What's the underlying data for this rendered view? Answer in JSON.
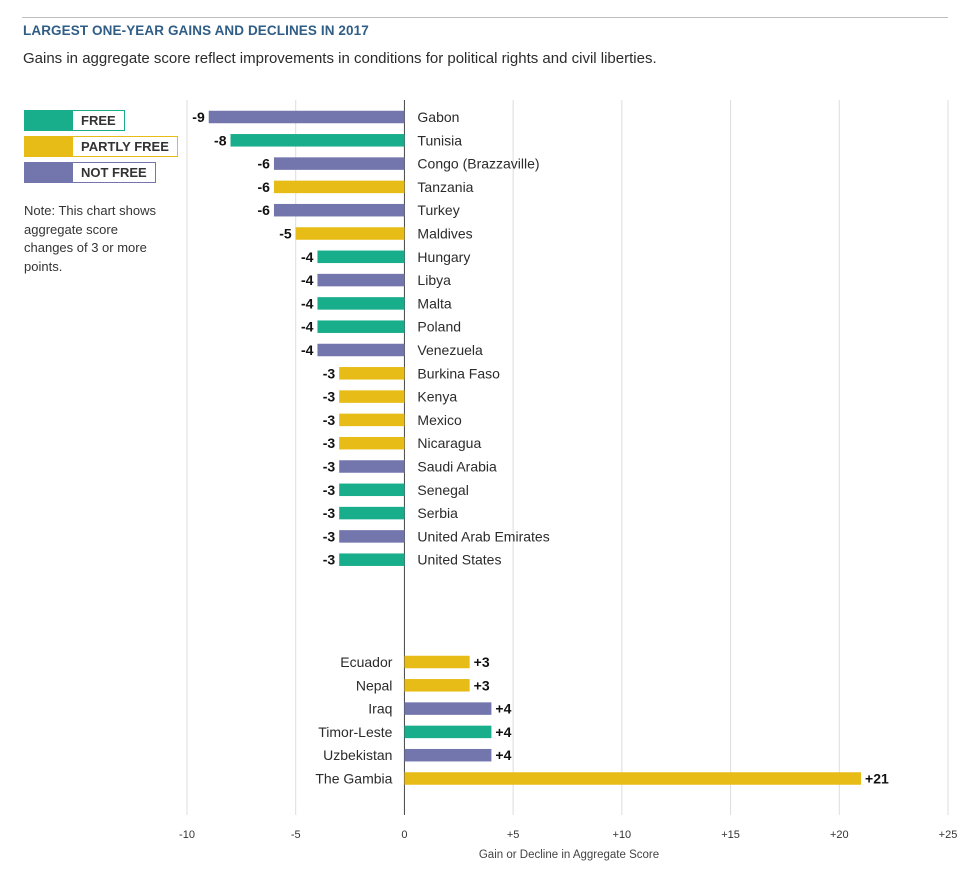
{
  "title": "LARGEST ONE-YEAR GAINS AND DECLINES IN 2017",
  "subtitle": "Gains in aggregate score reflect improvements in conditions for political rights and civil liberties.",
  "colors": {
    "free": "#18ad8b",
    "partly_free": "#e7bc16",
    "not_free": "#7276ad",
    "axis": "#444444",
    "grid": "#dddddd",
    "title": "#2f5d86"
  },
  "legend": [
    {
      "key": "free",
      "label": "FREE",
      "color": "#18ad8b"
    },
    {
      "key": "partly_free",
      "label": "PARTLY FREE",
      "color": "#e7bc16"
    },
    {
      "key": "not_free",
      "label": "NOT FREE",
      "color": "#7276ad"
    }
  ],
  "note": "Note: This chart shows aggregate score changes of 3 or more points.",
  "chart_data": {
    "type": "bar",
    "orientation": "horizontal",
    "title": "LARGEST ONE-YEAR GAINS AND DECLINES IN 2017",
    "xlabel": "Gain or Decline in Aggregate Score",
    "ylabel": "",
    "xlim": [
      -10,
      25
    ],
    "x_ticks": [
      -10,
      -5,
      0,
      5,
      10,
      15,
      20,
      25
    ],
    "x_tick_labels": [
      "-10",
      "-5",
      "0",
      "+5",
      "+10",
      "+15",
      "+20",
      "+25"
    ],
    "grid": true,
    "legend_position": "top-left",
    "declines": [
      {
        "country": "Gabon",
        "value": -9,
        "label": "-9",
        "status": "not_free"
      },
      {
        "country": "Tunisia",
        "value": -8,
        "label": "-8",
        "status": "free"
      },
      {
        "country": "Congo (Brazzaville)",
        "value": -6,
        "label": "-6",
        "status": "not_free"
      },
      {
        "country": "Tanzania",
        "value": -6,
        "label": "-6",
        "status": "partly_free"
      },
      {
        "country": "Turkey",
        "value": -6,
        "label": "-6",
        "status": "not_free"
      },
      {
        "country": "Maldives",
        "value": -5,
        "label": "-5",
        "status": "partly_free"
      },
      {
        "country": "Hungary",
        "value": -4,
        "label": "-4",
        "status": "free"
      },
      {
        "country": "Libya",
        "value": -4,
        "label": "-4",
        "status": "not_free"
      },
      {
        "country": "Malta",
        "value": -4,
        "label": "-4",
        "status": "free"
      },
      {
        "country": "Poland",
        "value": -4,
        "label": "-4",
        "status": "free"
      },
      {
        "country": "Venezuela",
        "value": -4,
        "label": "-4",
        "status": "not_free"
      },
      {
        "country": "Burkina Faso",
        "value": -3,
        "label": "-3",
        "status": "partly_free"
      },
      {
        "country": "Kenya",
        "value": -3,
        "label": "-3",
        "status": "partly_free"
      },
      {
        "country": "Mexico",
        "value": -3,
        "label": "-3",
        "status": "partly_free"
      },
      {
        "country": "Nicaragua",
        "value": -3,
        "label": "-3",
        "status": "partly_free"
      },
      {
        "country": "Saudi Arabia",
        "value": -3,
        "label": "-3",
        "status": "not_free"
      },
      {
        "country": "Senegal",
        "value": -3,
        "label": "-3",
        "status": "free"
      },
      {
        "country": "Serbia",
        "value": -3,
        "label": "-3",
        "status": "free"
      },
      {
        "country": "United Arab Emirates",
        "value": -3,
        "label": "-3",
        "status": "not_free"
      },
      {
        "country": "United States",
        "value": -3,
        "label": "-3",
        "status": "free"
      }
    ],
    "gains": [
      {
        "country": "Ecuador",
        "value": 3,
        "label": "+3",
        "status": "partly_free"
      },
      {
        "country": "Nepal",
        "value": 3,
        "label": "+3",
        "status": "partly_free"
      },
      {
        "country": "Iraq",
        "value": 4,
        "label": "+4",
        "status": "not_free"
      },
      {
        "country": "Timor-Leste",
        "value": 4,
        "label": "+4",
        "status": "free"
      },
      {
        "country": "Uzbekistan",
        "value": 4,
        "label": "+4",
        "status": "not_free"
      },
      {
        "country": "The Gambia",
        "value": 21,
        "label": "+21",
        "status": "partly_free"
      }
    ]
  }
}
